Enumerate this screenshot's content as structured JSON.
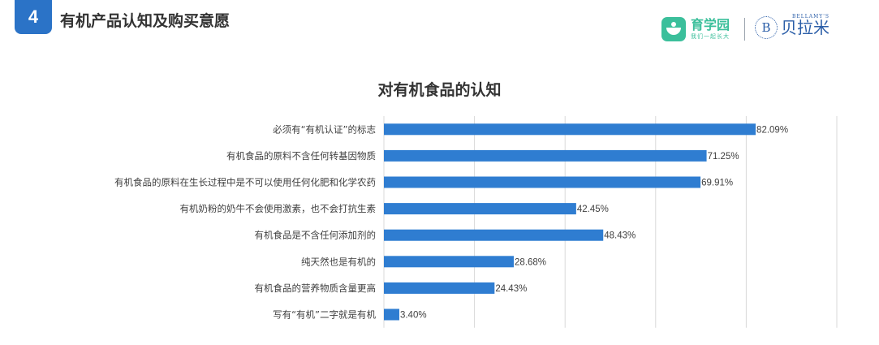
{
  "header": {
    "section_number": "4",
    "section_title": "有机产品认知及购买意愿",
    "brand_yuxueyuan": {
      "name": "育学园",
      "slogan": "我们一起长大",
      "color": "#3bbf9b"
    },
    "brand_bellamys": {
      "en": "BELLAMY'S",
      "cn": "贝拉米",
      "emblem": "B",
      "color": "#2b5ea8"
    },
    "accent_color": "#2b73c7"
  },
  "chart_data": {
    "type": "bar",
    "orientation": "horizontal",
    "title": "对有机食品的认知",
    "categories": [
      "必须有“有机认证”的标志",
      "有机食品的原料不含任何转基因物质",
      "有机食品的原料在生长过程中是不可以使用任何化肥和化学农药",
      "有机奶粉的奶牛不会使用激素，也不会打抗生素",
      "有机食品是不含任何添加剂的",
      "纯天然也是有机的",
      "有机食品的营养物质含量更高",
      "写有“有机”二字就是有机"
    ],
    "values": [
      82.09,
      71.25,
      69.91,
      42.45,
      48.43,
      28.68,
      24.43,
      3.4
    ],
    "value_labels": [
      "82.09%",
      "71.25%",
      "69.91%",
      "42.45%",
      "48.43%",
      "28.68%",
      "24.43%",
      "3.40%"
    ],
    "xlim": [
      0,
      100
    ],
    "grid": true,
    "bar_color": "#2f7dd1"
  }
}
